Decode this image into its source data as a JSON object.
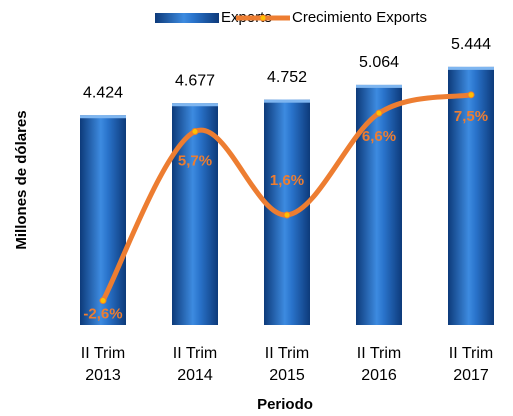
{
  "chart_data": {
    "type": "bar-line",
    "categories": [
      "II Trim 2013",
      "II Trim 2014",
      "II Trim 2015",
      "II Trim 2016",
      "II Trim 2017"
    ],
    "series": [
      {
        "name": "Exports",
        "type": "bar",
        "color": "#1f5fb4",
        "values": [
          4424,
          4677,
          4752,
          5064,
          5444
        ],
        "value_labels": [
          "4.424",
          "4.677",
          "4.752",
          "5.064",
          "5.444"
        ]
      },
      {
        "name": "Crecimiento Exports",
        "type": "line",
        "axis": "y2",
        "color": "#ed7d31",
        "values": [
          -2.6,
          5.7,
          1.6,
          6.6,
          7.5
        ],
        "value_labels": [
          "-2,6%",
          "5,7%",
          "1,6%",
          "6,6%",
          "7,5%"
        ]
      }
    ],
    "ylabel": "Millones de dólares",
    "xlabel": "Periodo",
    "ylim": [
      0,
      5800
    ],
    "y2lim": [
      -3.8,
      9.7
    ],
    "legend": "top"
  }
}
